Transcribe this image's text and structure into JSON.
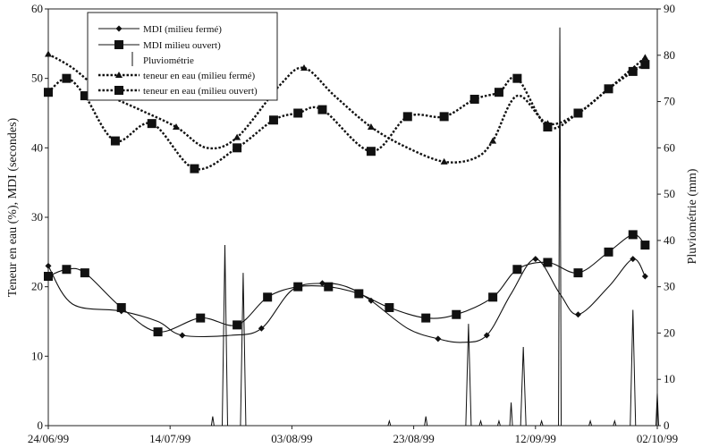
{
  "chart_data": {
    "type": "line",
    "x_start": "24/06/99",
    "x_ticks": [
      "24/06/99",
      "14/07/99",
      "03/08/99",
      "23/08/99",
      "12/09/99",
      "02/10/99"
    ],
    "y_left": {
      "label": "Teneur en eau (%), MDI (secondes)",
      "lim": [
        0,
        60
      ],
      "ticks": [
        "0",
        "10",
        "20",
        "30",
        "40",
        "50",
        "60"
      ]
    },
    "y_right": {
      "label": "Pluviométrie (mm)",
      "lim": [
        0,
        90
      ],
      "ticks": [
        "0",
        "10",
        "20",
        "30",
        "40",
        "50",
        "60",
        "70",
        "80",
        "90"
      ]
    },
    "legend": [
      "MDI (milieu fermé)",
      "MDI milieu ouvert)",
      "Pluviométrie",
      "teneur en eau (milieu fermé)",
      "teneur en eau (milieu ouvert)"
    ],
    "series": [
      {
        "name": "MDI (milieu fermé)",
        "marker": "diamond",
        "dash": "solid",
        "x": [
          "24/06/99",
          "28/06/99",
          "06/07/99",
          "12/07/99",
          "16/07/99",
          "24/07/99",
          "29/07/99",
          "03/08/99",
          "08/08/99",
          "12/08/99",
          "16/08/99",
          "22/08/99",
          "27/08/99",
          "31/08/99",
          "04/09/99",
          "08/09/99",
          "12/09/99",
          "16/09/99",
          "19/09/99",
          "24/09/99",
          "28/09/99",
          "30/09/99"
        ],
        "y": [
          23,
          17.5,
          16.5,
          15,
          13,
          13,
          14,
          19.5,
          20.5,
          20,
          18,
          14,
          12.5,
          12,
          13,
          19,
          24,
          19,
          16,
          20,
          24,
          21.5
        ]
      },
      {
        "name": "MDI milieu ouvert)",
        "marker": "square",
        "dash": "solid",
        "x": [
          "24/06/99",
          "27/06/99",
          "30/06/99",
          "06/07/99",
          "12/07/99",
          "19/07/99",
          "25/07/99",
          "30/07/99",
          "04/08/99",
          "09/08/99",
          "14/08/99",
          "19/08/99",
          "25/08/99",
          "30/08/99",
          "05/09/99",
          "09/09/99",
          "14/09/99",
          "19/09/99",
          "24/09/99",
          "28/09/99",
          "30/09/99"
        ],
        "y": [
          21.5,
          22.5,
          22,
          17,
          13.5,
          15.5,
          14.5,
          18.5,
          20,
          20,
          19,
          17,
          15.5,
          16,
          18.5,
          22.5,
          23.5,
          22,
          25,
          27.5,
          26
        ]
      },
      {
        "name": "teneur en eau (milieu fermé)",
        "marker": "triangle",
        "dash": "dotted",
        "x": [
          "24/06/99",
          "28/06/99",
          "03/07/99",
          "09/07/99",
          "15/07/99",
          "20/07/99",
          "25/07/99",
          "01/08/99",
          "05/08/99",
          "10/08/99",
          "16/08/99",
          "22/08/99",
          "28/08/99",
          "02/09/99",
          "05/09/99",
          "09/09/99",
          "14/09/99",
          "19/09/99",
          "24/09/99",
          "28/09/99",
          "30/09/99"
        ],
        "y": [
          53.5,
          51.5,
          48,
          45.5,
          43,
          40,
          41.5,
          49,
          51.5,
          47.5,
          43,
          40,
          38,
          38.5,
          41,
          47.5,
          43.5,
          45,
          48.5,
          51.5,
          53
        ]
      },
      {
        "name": "teneur en eau (milieu ouvert)",
        "marker": "square",
        "dash": "dotted",
        "x": [
          "24/06/99",
          "27/06/99",
          "30/06/99",
          "05/07/99",
          "11/07/99",
          "18/07/99",
          "25/07/99",
          "31/07/99",
          "04/08/99",
          "08/08/99",
          "16/08/99",
          "22/08/99",
          "28/08/99",
          "02/09/99",
          "06/09/99",
          "09/09/99",
          "14/09/99",
          "19/09/99",
          "24/09/99",
          "28/09/99",
          "30/09/99"
        ],
        "y": [
          48,
          50,
          47.5,
          41,
          43.5,
          37,
          40,
          44,
          45,
          45.5,
          39.5,
          44.5,
          44.5,
          47,
          48,
          50,
          43,
          45,
          48.5,
          51,
          52
        ]
      }
    ],
    "rainfall": {
      "name": "Pluviométrie",
      "unit": "mm",
      "events": [
        {
          "x": "21/07/99",
          "mm": 2
        },
        {
          "x": "23/07/99",
          "mm": 39
        },
        {
          "x": "26/07/99",
          "mm": 33
        },
        {
          "x": "19/08/99",
          "mm": 1
        },
        {
          "x": "25/08/99",
          "mm": 2
        },
        {
          "x": "01/09/99",
          "mm": 22
        },
        {
          "x": "03/09/99",
          "mm": 1
        },
        {
          "x": "06/09/99",
          "mm": 1
        },
        {
          "x": "08/09/99",
          "mm": 5
        },
        {
          "x": "10/09/99",
          "mm": 17
        },
        {
          "x": "13/09/99",
          "mm": 1
        },
        {
          "x": "16/09/99",
          "mm": 86
        },
        {
          "x": "21/09/99",
          "mm": 1
        },
        {
          "x": "25/09/99",
          "mm": 1
        },
        {
          "x": "28/09/99",
          "mm": 25
        },
        {
          "x": "02/10/99",
          "mm": 7
        }
      ]
    }
  }
}
